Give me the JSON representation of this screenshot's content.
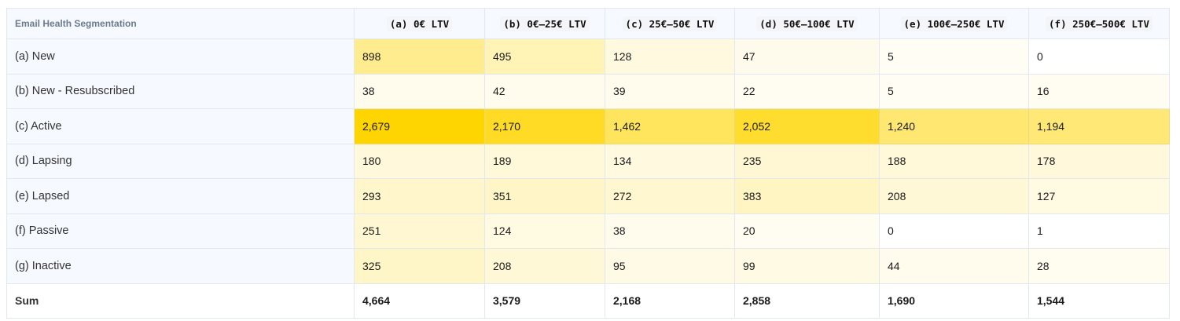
{
  "table": {
    "corner_label": "Email Health Segmentation",
    "columns": [
      "(a) 0€ LTV",
      "(b) 0€–25€ LTV",
      "(c) 25€–50€ LTV",
      "(d) 50€–100€ LTV",
      "(e) 100€–250€ LTV",
      "(f) 250€–500€ LTV"
    ],
    "rows": [
      {
        "label": "(a) New",
        "cells": [
          "898",
          "495",
          "128",
          "47",
          "5",
          "0"
        ]
      },
      {
        "label": "(b) New - Resubscribed",
        "cells": [
          "38",
          "42",
          "39",
          "22",
          "5",
          "16"
        ]
      },
      {
        "label": "(c) Active",
        "cells": [
          "2,679",
          "2,170",
          "1,462",
          "2,052",
          "1,240",
          "1,194"
        ]
      },
      {
        "label": "(d) Lapsing",
        "cells": [
          "180",
          "189",
          "134",
          "235",
          "188",
          "178"
        ]
      },
      {
        "label": "(e) Lapsed",
        "cells": [
          "293",
          "351",
          "272",
          "383",
          "208",
          "127"
        ]
      },
      {
        "label": "(f) Passive",
        "cells": [
          "251",
          "124",
          "38",
          "20",
          "0",
          "1"
        ]
      },
      {
        "label": "(g) Inactive",
        "cells": [
          "325",
          "208",
          "95",
          "99",
          "44",
          "28"
        ]
      }
    ],
    "sum": {
      "label": "Sum",
      "cells": [
        "4,664",
        "3,579",
        "2,168",
        "2,858",
        "1,690",
        "1,544"
      ]
    }
  },
  "colors": {
    "heat_high": "#ffd500",
    "heat_low": "#fffdf6",
    "border": "#e3e8ef",
    "header_bg": "#f6f9ff"
  }
}
